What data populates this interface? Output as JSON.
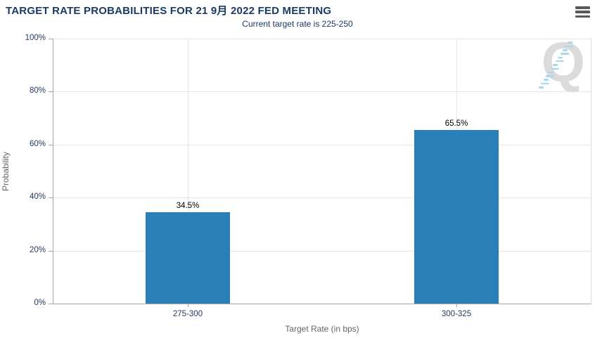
{
  "chart_data": {
    "type": "bar",
    "title": "TARGET RATE PROBABILITIES FOR 21 9月 2022 FED MEETING",
    "subtitle": "Current target rate is 225-250",
    "categories": [
      "275-300",
      "300-325"
    ],
    "values": [
      34.5,
      65.5
    ],
    "value_labels": [
      "34.5%",
      "65.5%"
    ],
    "xlabel": "Target Rate (in bps)",
    "ylabel": "Probability",
    "ylim": [
      0,
      100
    ],
    "yticks": [
      0,
      20,
      40,
      60,
      80,
      100
    ],
    "ytick_labels": [
      "0%",
      "20%",
      "40%",
      "60%",
      "80%",
      "100%"
    ],
    "grid": true,
    "legend": "none",
    "bar_color": "#2a7fb8"
  },
  "icons": {
    "menu": "hamburger-menu-icon"
  },
  "watermark": {
    "letter": "Q"
  },
  "colors": {
    "title_text": "#1b3a63",
    "axis_tick_text": "#253b5e",
    "axis_title_text": "#666666",
    "bar": "#2a7fb8",
    "gridline": "#e6e6e6",
    "axis_line": "#a6a6a6",
    "watermark_letter": "#dbdbdb",
    "watermark_dash": "#a9d9ef"
  }
}
